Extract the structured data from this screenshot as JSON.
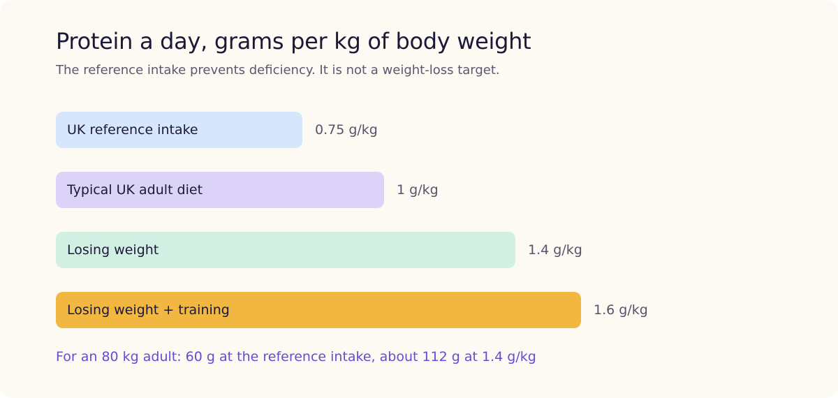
{
  "chart_data": {
    "type": "bar",
    "orientation": "horizontal",
    "title": "Protein a day, grams per kg of body weight",
    "subtitle": "The reference intake prevents deficiency. It is not a weight-loss target.",
    "categories": [
      "UK reference intake",
      "Typical UK adult diet",
      "Losing weight",
      "Losing weight + training"
    ],
    "values": [
      0.75,
      1,
      1.4,
      1.6
    ],
    "value_labels": [
      "0.75 g/kg",
      "1 g/kg",
      "1.4 g/kg",
      "1.6 g/kg"
    ],
    "colors": [
      "#d6e6fd",
      "#dcd3f8",
      "#d2efe3",
      "#f2b740"
    ],
    "xlim": [
      0,
      1.6
    ],
    "grid": false,
    "footnote": "For an 80 kg adult: 60 g at the reference intake, about 112 g at 1.4 g/kg"
  }
}
